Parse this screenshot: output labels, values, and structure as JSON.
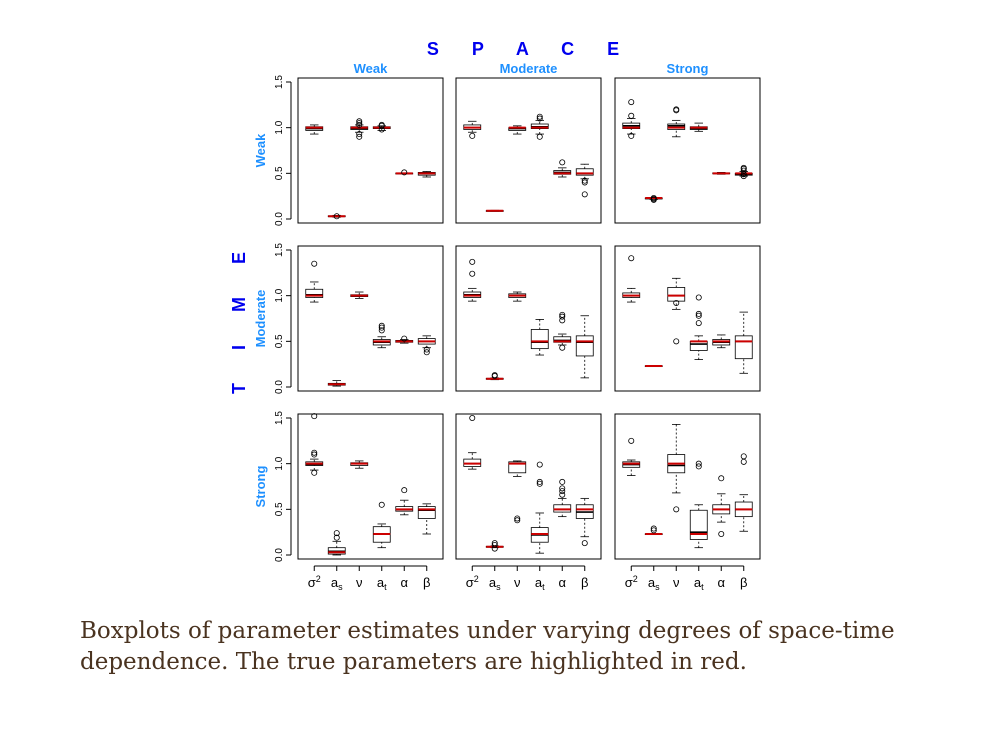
{
  "caption": "Boxplots of parameter estimates under varying degrees of space-time dependence. The true parameters are highlighted in red.",
  "chart_data": {
    "type": "boxplot",
    "layout": {
      "rows": 3,
      "cols": 3
    },
    "col_axis_title": "S P A C E",
    "row_axis_title": "T I M E",
    "col_labels": [
      "Weak",
      "Moderate",
      "Strong"
    ],
    "row_labels": [
      "Weak",
      "Moderate",
      "Strong"
    ],
    "categories": [
      {
        "base": "σ",
        "sup": "2",
        "sub": ""
      },
      {
        "base": "a",
        "sup": "",
        "sub": "s"
      },
      {
        "base": "ν",
        "sup": "",
        "sub": ""
      },
      {
        "base": "a",
        "sup": "",
        "sub": "t"
      },
      {
        "base": "α",
        "sup": "",
        "sub": ""
      },
      {
        "base": "β",
        "sup": "",
        "sub": ""
      }
    ],
    "ylim": [
      0,
      1.5
    ],
    "yticks": [
      0.0,
      0.5,
      1.0,
      1.5
    ],
    "ytick_labels": [
      "0.0",
      "0.5",
      "1.0",
      "1.5"
    ],
    "colors": {
      "title": "#0000ee",
      "label": "#1e90ff",
      "true_value": "#cc0000",
      "box": "#000000"
    },
    "panels": [
      {
        "row": 0,
        "col": 0,
        "boxes": [
          {
            "min": 0.93,
            "q1": 0.97,
            "med": 0.99,
            "q3": 1.01,
            "max": 1.03,
            "true": 1.0,
            "outliers": []
          },
          {
            "min": 0.02,
            "q1": 0.025,
            "med": 0.03,
            "q3": 0.035,
            "max": 0.04,
            "true": 0.03,
            "outliers": [
              0.03
            ]
          },
          {
            "min": 0.95,
            "q1": 0.98,
            "med": 0.99,
            "q3": 1.01,
            "max": 1.03,
            "true": 1.0,
            "outliers": [
              0.9,
              0.93,
              1.03,
              1.05,
              1.07
            ]
          },
          {
            "min": 0.97,
            "q1": 0.99,
            "med": 1.0,
            "q3": 1.01,
            "max": 1.02,
            "true": 1.0,
            "outliers": [
              0.98,
              1.02,
              1.03
            ]
          },
          {
            "min": 0.495,
            "q1": 0.498,
            "med": 0.5,
            "q3": 0.502,
            "max": 0.505,
            "true": 0.5,
            "outliers": [
              0.51
            ]
          },
          {
            "min": 0.46,
            "q1": 0.48,
            "med": 0.5,
            "q3": 0.51,
            "max": 0.52,
            "true": 0.5,
            "outliers": []
          }
        ]
      },
      {
        "row": 0,
        "col": 1,
        "boxes": [
          {
            "min": 0.95,
            "q1": 0.98,
            "med": 1.0,
            "q3": 1.03,
            "max": 1.07,
            "true": 1.0,
            "outliers": [
              0.91
            ]
          },
          {
            "min": 0.085,
            "q1": 0.088,
            "med": 0.09,
            "q3": 0.092,
            "max": 0.095,
            "true": 0.09,
            "outliers": []
          },
          {
            "min": 0.93,
            "q1": 0.97,
            "med": 0.99,
            "q3": 1.0,
            "max": 1.02,
            "true": 1.0,
            "outliers": []
          },
          {
            "min": 0.93,
            "q1": 0.99,
            "med": 1.01,
            "q3": 1.04,
            "max": 1.08,
            "true": 1.0,
            "outliers": [
              0.9,
              1.1,
              1.12
            ]
          },
          {
            "min": 0.46,
            "q1": 0.49,
            "med": 0.51,
            "q3": 0.53,
            "max": 0.56,
            "true": 0.5,
            "outliers": [
              0.62
            ]
          },
          {
            "min": 0.44,
            "q1": 0.48,
            "med": 0.5,
            "q3": 0.55,
            "max": 0.6,
            "true": 0.5,
            "outliers": [
              0.27,
              0.4,
              0.42
            ]
          }
        ]
      },
      {
        "row": 0,
        "col": 2,
        "boxes": [
          {
            "min": 0.93,
            "q1": 0.99,
            "med": 1.02,
            "q3": 1.05,
            "max": 1.1,
            "true": 1.0,
            "outliers": [
              0.91,
              1.13,
              1.28
            ]
          },
          {
            "min": 0.215,
            "q1": 0.22,
            "med": 0.225,
            "q3": 0.23,
            "max": 0.235,
            "true": 0.23,
            "outliers": [
              0.21,
              0.22,
              0.23
            ]
          },
          {
            "min": 0.9,
            "q1": 0.98,
            "med": 1.02,
            "q3": 1.04,
            "max": 1.08,
            "true": 1.0,
            "outliers": [
              1.19,
              1.2
            ]
          },
          {
            "min": 0.96,
            "q1": 0.98,
            "med": 0.99,
            "q3": 1.01,
            "max": 1.05,
            "true": 1.0,
            "outliers": []
          },
          {
            "min": 0.49,
            "q1": 0.495,
            "med": 0.5,
            "q3": 0.505,
            "max": 0.51,
            "true": 0.5,
            "outliers": []
          },
          {
            "min": 0.47,
            "q1": 0.48,
            "med": 0.49,
            "q3": 0.5,
            "max": 0.52,
            "true": 0.5,
            "outliers": [
              0.47,
              0.49,
              0.53,
              0.55,
              0.56
            ]
          }
        ]
      },
      {
        "row": 1,
        "col": 0,
        "boxes": [
          {
            "min": 0.93,
            "q1": 0.98,
            "med": 1.01,
            "q3": 1.07,
            "max": 1.15,
            "true": 1.0,
            "outliers": [
              1.35
            ]
          },
          {
            "min": 0.01,
            "q1": 0.02,
            "med": 0.03,
            "q3": 0.04,
            "max": 0.07,
            "true": 0.03,
            "outliers": []
          },
          {
            "min": 0.97,
            "q1": 0.99,
            "med": 1.0,
            "q3": 1.01,
            "max": 1.04,
            "true": 1.0,
            "outliers": []
          },
          {
            "min": 0.43,
            "q1": 0.46,
            "med": 0.49,
            "q3": 0.52,
            "max": 0.55,
            "true": 0.5,
            "outliers": [
              0.62,
              0.65,
              0.67
            ]
          },
          {
            "min": 0.48,
            "q1": 0.49,
            "med": 0.5,
            "q3": 0.51,
            "max": 0.52,
            "true": 0.5,
            "outliers": [
              0.53
            ]
          },
          {
            "min": 0.43,
            "q1": 0.47,
            "med": 0.5,
            "q3": 0.53,
            "max": 0.56,
            "true": 0.5,
            "outliers": [
              0.38,
              0.41
            ]
          }
        ]
      },
      {
        "row": 1,
        "col": 1,
        "boxes": [
          {
            "min": 0.94,
            "q1": 0.98,
            "med": 1.01,
            "q3": 1.04,
            "max": 1.08,
            "true": 1.0,
            "outliers": [
              1.24,
              1.37
            ]
          },
          {
            "min": 0.08,
            "q1": 0.085,
            "med": 0.09,
            "q3": 0.095,
            "max": 0.1,
            "true": 0.09,
            "outliers": [
              0.12,
              0.13
            ]
          },
          {
            "min": 0.94,
            "q1": 0.98,
            "med": 1.0,
            "q3": 1.02,
            "max": 1.04,
            "true": 1.0,
            "outliers": []
          },
          {
            "min": 0.35,
            "q1": 0.42,
            "med": 0.49,
            "q3": 0.63,
            "max": 0.74,
            "true": 0.5,
            "outliers": []
          },
          {
            "min": 0.46,
            "q1": 0.49,
            "med": 0.51,
            "q3": 0.55,
            "max": 0.58,
            "true": 0.5,
            "outliers": [
              0.43,
              0.73,
              0.77,
              0.79
            ]
          },
          {
            "min": 0.1,
            "q1": 0.34,
            "med": 0.49,
            "q3": 0.56,
            "max": 0.78,
            "true": 0.5,
            "outliers": []
          }
        ]
      },
      {
        "row": 1,
        "col": 2,
        "boxes": [
          {
            "min": 0.93,
            "q1": 0.98,
            "med": 1.0,
            "q3": 1.03,
            "max": 1.08,
            "true": 1.0,
            "outliers": [
              1.41
            ]
          },
          {
            "min": 0.225,
            "q1": 0.228,
            "med": 0.23,
            "q3": 0.232,
            "max": 0.235,
            "true": 0.23,
            "outliers": []
          },
          {
            "min": 0.85,
            "q1": 0.94,
            "med": 1.0,
            "q3": 1.09,
            "max": 1.19,
            "true": 1.0,
            "outliers": [
              0.5,
              0.92
            ]
          },
          {
            "min": 0.3,
            "q1": 0.4,
            "med": 0.47,
            "q3": 0.5,
            "max": 0.56,
            "true": 0.5,
            "outliers": [
              0.7,
              0.78,
              0.8,
              0.98
            ]
          },
          {
            "min": 0.43,
            "q1": 0.46,
            "med": 0.49,
            "q3": 0.52,
            "max": 0.57,
            "true": 0.5,
            "outliers": []
          },
          {
            "min": 0.15,
            "q1": 0.31,
            "med": 0.5,
            "q3": 0.56,
            "max": 0.82,
            "true": 0.5,
            "outliers": []
          }
        ]
      },
      {
        "row": 2,
        "col": 0,
        "boxes": [
          {
            "min": 0.93,
            "q1": 0.98,
            "med": 0.99,
            "q3": 1.02,
            "max": 1.05,
            "true": 1.0,
            "outliers": [
              0.9,
              1.1,
              1.12,
              1.52
            ]
          },
          {
            "min": 0.0,
            "q1": 0.01,
            "med": 0.04,
            "q3": 0.08,
            "max": 0.15,
            "true": 0.03,
            "outliers": [
              0.19,
              0.24
            ]
          },
          {
            "min": 0.95,
            "q1": 0.98,
            "med": 1.0,
            "q3": 1.01,
            "max": 1.03,
            "true": 1.0,
            "outliers": []
          },
          {
            "min": 0.08,
            "q1": 0.14,
            "med": 0.23,
            "q3": 0.31,
            "max": 0.34,
            "true": 0.23,
            "outliers": [
              0.55
            ]
          },
          {
            "min": 0.44,
            "q1": 0.48,
            "med": 0.5,
            "q3": 0.53,
            "max": 0.6,
            "true": 0.5,
            "outliers": [
              0.71
            ]
          },
          {
            "min": 0.23,
            "q1": 0.4,
            "med": 0.49,
            "q3": 0.53,
            "max": 0.56,
            "true": 0.5,
            "outliers": []
          }
        ]
      },
      {
        "row": 2,
        "col": 1,
        "boxes": [
          {
            "min": 0.94,
            "q1": 0.97,
            "med": 1.0,
            "q3": 1.05,
            "max": 1.12,
            "true": 1.0,
            "outliers": [
              1.5
            ]
          },
          {
            "min": 0.08,
            "q1": 0.085,
            "med": 0.09,
            "q3": 0.095,
            "max": 0.1,
            "true": 0.09,
            "outliers": [
              0.07,
              0.11,
              0.13
            ]
          },
          {
            "min": 0.86,
            "q1": 0.9,
            "med": 1.0,
            "q3": 1.02,
            "max": 1.03,
            "true": 1.0,
            "outliers": [
              0.38,
              0.4
            ]
          },
          {
            "min": 0.02,
            "q1": 0.14,
            "med": 0.22,
            "q3": 0.3,
            "max": 0.46,
            "true": 0.23,
            "outliers": [
              0.78,
              0.8,
              0.99
            ]
          },
          {
            "min": 0.42,
            "q1": 0.47,
            "med": 0.5,
            "q3": 0.55,
            "max": 0.62,
            "true": 0.5,
            "outliers": [
              0.66,
              0.7,
              0.73,
              0.8
            ]
          },
          {
            "min": 0.2,
            "q1": 0.4,
            "med": 0.47,
            "q3": 0.55,
            "max": 0.62,
            "true": 0.5,
            "outliers": [
              0.13
            ]
          }
        ]
      },
      {
        "row": 2,
        "col": 2,
        "boxes": [
          {
            "min": 0.87,
            "q1": 0.96,
            "med": 0.99,
            "q3": 1.02,
            "max": 1.04,
            "true": 1.0,
            "outliers": [
              1.25
            ]
          },
          {
            "min": 0.225,
            "q1": 0.228,
            "med": 0.23,
            "q3": 0.232,
            "max": 0.235,
            "true": 0.23,
            "outliers": [
              0.27,
              0.29
            ]
          },
          {
            "min": 0.68,
            "q1": 0.9,
            "med": 0.98,
            "q3": 1.1,
            "max": 1.43,
            "true": 1.0,
            "outliers": [
              0.5
            ]
          },
          {
            "min": 0.08,
            "q1": 0.17,
            "med": 0.25,
            "q3": 0.49,
            "max": 0.55,
            "true": 0.23,
            "outliers": [
              0.97,
              1.0
            ]
          },
          {
            "min": 0.36,
            "q1": 0.45,
            "med": 0.5,
            "q3": 0.55,
            "max": 0.67,
            "true": 0.5,
            "outliers": [
              0.23,
              0.84
            ]
          },
          {
            "min": 0.26,
            "q1": 0.42,
            "med": 0.5,
            "q3": 0.58,
            "max": 0.66,
            "true": 0.5,
            "outliers": [
              1.02,
              1.08
            ]
          }
        ]
      }
    ]
  }
}
